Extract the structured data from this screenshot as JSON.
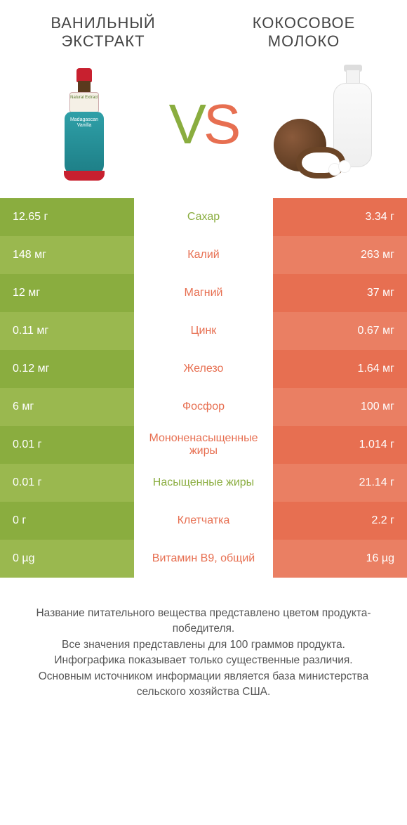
{
  "colors": {
    "green": "#8aad3f",
    "green_alt": "#9ab84f",
    "orange": "#e76f51",
    "orange_alt": "#ea7f63",
    "text": "#555"
  },
  "header": {
    "left_title": "Ванильный экстракт",
    "right_title": "Кокосовое молоко",
    "vs_v": "V",
    "vs_s": "S"
  },
  "bottle": {
    "label_top": "Natural Extract",
    "body_label": "Madagascan Vanilla"
  },
  "rows": [
    {
      "nutrient": "Сахар",
      "left": "12.65 г",
      "right": "3.34 г",
      "winner": "left"
    },
    {
      "nutrient": "Калий",
      "left": "148 мг",
      "right": "263 мг",
      "winner": "right"
    },
    {
      "nutrient": "Магний",
      "left": "12 мг",
      "right": "37 мг",
      "winner": "right"
    },
    {
      "nutrient": "Цинк",
      "left": "0.11 мг",
      "right": "0.67 мг",
      "winner": "right"
    },
    {
      "nutrient": "Железо",
      "left": "0.12 мг",
      "right": "1.64 мг",
      "winner": "right"
    },
    {
      "nutrient": "Фосфор",
      "left": "6 мг",
      "right": "100 мг",
      "winner": "right"
    },
    {
      "nutrient": "Мононенасыщенные жиры",
      "left": "0.01 г",
      "right": "1.014 г",
      "winner": "right"
    },
    {
      "nutrient": "Насыщенные жиры",
      "left": "0.01 г",
      "right": "21.14 г",
      "winner": "left"
    },
    {
      "nutrient": "Клетчатка",
      "left": "0 г",
      "right": "2.2 г",
      "winner": "right"
    },
    {
      "nutrient": "Витамин B9, общий",
      "left": "0 µg",
      "right": "16 µg",
      "winner": "right"
    }
  ],
  "footer": {
    "line1": "Название питательного вещества представлено цветом продукта-победителя.",
    "line2": "Все значения представлены для 100 граммов продукта.",
    "line3": "Инфографика показывает только существенные различия.",
    "line4": "Основным источником информации является база министерства сельского хозяйства США."
  }
}
